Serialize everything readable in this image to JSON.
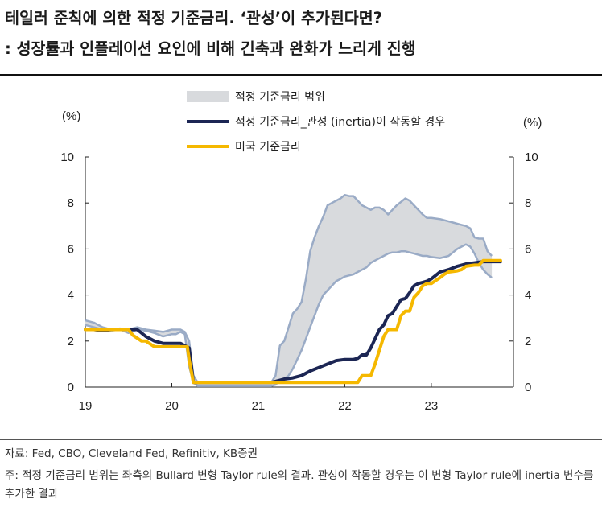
{
  "header": {
    "title_line1": "테일러 준칙에 의한 적정 기준금리. ‘관성’이 추가된다면?",
    "title_line2": ": 성장률과 인플레이션 요인에 비해 긴축과 완화가 느리게 진행"
  },
  "footer": {
    "source": "자료: Fed, CBO, Cleveland Fed, Refinitiv, KB증권",
    "note": "주: 적정 기준금리 범위는 좌측의 Bullard 변형 Taylor rule의 결과. 관성이 작동할 경우는 이 변형 Taylor rule에 inertia 변수를 추가한 결과"
  },
  "chart_data": {
    "type": "line",
    "xlim": [
      2019,
      2023.95
    ],
    "ylim": [
      0,
      10
    ],
    "x_ticks": [
      {
        "v": 2019,
        "label": "19"
      },
      {
        "v": 2020,
        "label": "20"
      },
      {
        "v": 2021,
        "label": "21"
      },
      {
        "v": 2022,
        "label": "22"
      },
      {
        "v": 2023,
        "label": "23"
      }
    ],
    "y_ticks": [
      0,
      2,
      4,
      6,
      8,
      10
    ],
    "left_unit": "(%)",
    "right_unit": "(%)",
    "grid": false,
    "legend_position": "top",
    "series": [
      {
        "name": "적정 기준금리 범위",
        "kind": "band",
        "color": "#d8dadd",
        "edge_color": "#9aabc6",
        "x": [
          2019.0,
          2019.1,
          2019.2,
          2019.3,
          2019.4,
          2019.5,
          2019.6,
          2019.7,
          2019.8,
          2019.9,
          2020.0,
          2020.05,
          2020.1,
          2020.15,
          2020.2,
          2020.25,
          2020.3,
          2020.5,
          2020.75,
          2021.0,
          2021.1,
          2021.15,
          2021.2,
          2021.25,
          2021.3,
          2021.35,
          2021.4,
          2021.45,
          2021.5,
          2021.55,
          2021.6,
          2021.65,
          2021.7,
          2021.75,
          2021.8,
          2021.85,
          2021.9,
          2021.95,
          2022.0,
          2022.05,
          2022.1,
          2022.15,
          2022.2,
          2022.25,
          2022.3,
          2022.35,
          2022.4,
          2022.45,
          2022.5,
          2022.55,
          2022.6,
          2022.65,
          2022.7,
          2022.75,
          2022.8,
          2022.85,
          2022.9,
          2022.95,
          2023.0,
          2023.1,
          2023.2,
          2023.25,
          2023.3,
          2023.35,
          2023.4,
          2023.45,
          2023.5,
          2023.55,
          2023.6,
          2023.65,
          2023.7
        ],
        "upper": [
          2.9,
          2.8,
          2.6,
          2.5,
          2.55,
          2.5,
          2.6,
          2.5,
          2.45,
          2.4,
          2.5,
          2.5,
          2.5,
          2.4,
          2.0,
          0.5,
          0.2,
          0.2,
          0.2,
          0.2,
          0.2,
          0.2,
          0.5,
          1.8,
          2.0,
          2.6,
          3.2,
          3.4,
          3.7,
          4.7,
          5.9,
          6.5,
          7.0,
          7.4,
          7.9,
          8.0,
          8.1,
          8.2,
          8.35,
          8.3,
          8.3,
          8.1,
          7.9,
          7.8,
          7.7,
          7.8,
          7.8,
          7.7,
          7.5,
          7.7,
          7.9,
          8.05,
          8.2,
          8.1,
          7.9,
          7.7,
          7.5,
          7.35,
          7.35,
          7.3,
          7.2,
          7.15,
          7.1,
          7.05,
          7.0,
          6.9,
          6.5,
          6.45,
          6.45,
          5.9,
          5.7
        ],
        "lower": [
          2.7,
          2.6,
          2.5,
          2.45,
          2.5,
          2.35,
          2.5,
          2.45,
          2.35,
          2.2,
          2.3,
          2.3,
          2.4,
          2.3,
          0.9,
          0.2,
          0.05,
          0.05,
          0.05,
          0.05,
          0.05,
          0.05,
          0.1,
          0.3,
          0.35,
          0.5,
          0.8,
          1.2,
          1.6,
          2.1,
          2.6,
          3.1,
          3.6,
          4.0,
          4.2,
          4.4,
          4.6,
          4.7,
          4.8,
          4.85,
          4.9,
          5.0,
          5.1,
          5.2,
          5.4,
          5.5,
          5.6,
          5.7,
          5.8,
          5.85,
          5.85,
          5.9,
          5.9,
          5.85,
          5.8,
          5.75,
          5.7,
          5.7,
          5.65,
          5.6,
          5.7,
          5.85,
          6.0,
          6.1,
          6.2,
          6.1,
          5.8,
          5.4,
          5.1,
          4.9,
          4.75
        ]
      },
      {
        "name": "적정 기준금리_관성 (inertia)이 작동할 경우",
        "kind": "line",
        "color": "#1c2654",
        "x": [
          2019.0,
          2019.1,
          2019.2,
          2019.3,
          2019.4,
          2019.5,
          2019.6,
          2019.7,
          2019.8,
          2019.9,
          2020.0,
          2020.1,
          2020.15,
          2020.2,
          2020.25,
          2020.3,
          2020.5,
          2020.75,
          2021.0,
          2021.1,
          2021.15,
          2021.2,
          2021.3,
          2021.4,
          2021.5,
          2021.6,
          2021.7,
          2021.8,
          2021.9,
          2022.0,
          2022.1,
          2022.15,
          2022.2,
          2022.25,
          2022.3,
          2022.35,
          2022.4,
          2022.45,
          2022.5,
          2022.55,
          2022.6,
          2022.65,
          2022.7,
          2022.75,
          2022.8,
          2022.85,
          2022.9,
          2022.95,
          2023.0,
          2023.05,
          2023.1,
          2023.2,
          2023.3,
          2023.4,
          2023.5,
          2023.6,
          2023.7,
          2023.8
        ],
        "values": [
          2.5,
          2.5,
          2.45,
          2.5,
          2.5,
          2.5,
          2.5,
          2.2,
          2.0,
          1.9,
          1.9,
          1.9,
          1.8,
          1.7,
          0.2,
          0.2,
          0.2,
          0.2,
          0.2,
          0.2,
          0.2,
          0.25,
          0.35,
          0.4,
          0.5,
          0.7,
          0.85,
          1.0,
          1.15,
          1.2,
          1.2,
          1.25,
          1.4,
          1.4,
          1.7,
          2.1,
          2.5,
          2.7,
          3.1,
          3.2,
          3.5,
          3.8,
          3.85,
          4.1,
          4.4,
          4.5,
          4.55,
          4.6,
          4.7,
          4.85,
          5.0,
          5.1,
          5.25,
          5.35,
          5.4,
          5.45,
          5.45,
          5.45
        ]
      },
      {
        "name": "미국 기준금리",
        "kind": "line",
        "color": "#f5b800",
        "x": [
          2019.0,
          2019.5,
          2019.55,
          2019.65,
          2019.7,
          2019.8,
          2020.0,
          2020.1,
          2020.18,
          2020.2,
          2020.25,
          2020.5,
          2021.0,
          2021.5,
          2022.0,
          2022.15,
          2022.2,
          2022.3,
          2022.35,
          2022.4,
          2022.45,
          2022.5,
          2022.6,
          2022.65,
          2022.7,
          2022.75,
          2022.8,
          2022.85,
          2022.9,
          2022.95,
          2023.0,
          2023.1,
          2023.15,
          2023.2,
          2023.3,
          2023.35,
          2023.4,
          2023.5,
          2023.55,
          2023.6,
          2023.7,
          2023.8
        ],
        "values": [
          2.5,
          2.5,
          2.25,
          2.0,
          2.0,
          1.75,
          1.75,
          1.75,
          1.75,
          1.2,
          0.2,
          0.2,
          0.2,
          0.2,
          0.2,
          0.2,
          0.5,
          0.5,
          1.0,
          1.6,
          2.2,
          2.5,
          2.5,
          3.1,
          3.3,
          3.3,
          3.9,
          4.1,
          4.4,
          4.5,
          4.5,
          4.75,
          4.9,
          5.0,
          5.05,
          5.1,
          5.25,
          5.3,
          5.3,
          5.5,
          5.5,
          5.5
        ]
      }
    ]
  }
}
